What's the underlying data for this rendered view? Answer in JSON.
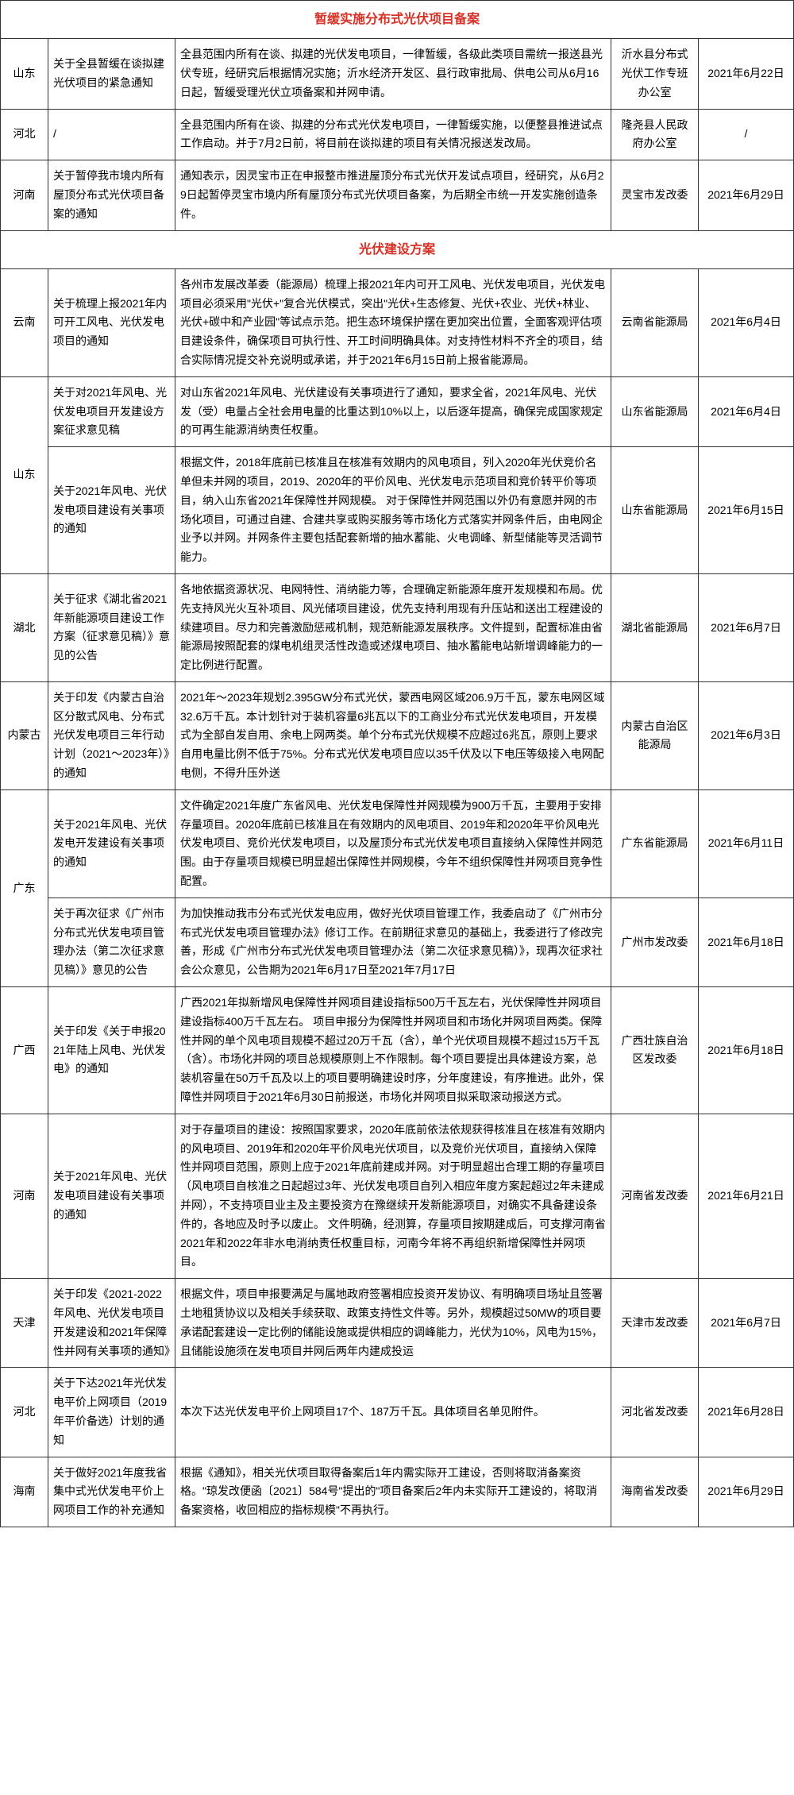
{
  "section1": {
    "header": "暂缓实施分布式光伏项目备案",
    "rows": [
      {
        "province": "山东",
        "title": "关于全县暂缓在谈拟建光伏项目的紧急通知",
        "content": "全县范围内所有在谈、拟建的光伏发电项目，一律暂缓，各级此类项目需统一报送县光伏专班，经研究后根据情况实施；沂水经济开发区、县行政审批局、供电公司从6月16日起，暂缓受理光伏立项备案和并网申请。",
        "dept": "沂水县分布式光伏工作专班办公室",
        "date": "2021年6月22日"
      },
      {
        "province": "河北",
        "title": "/",
        "content": "全县范围内所有在谈、拟建的分布式光伏发电项目，一律暂缓实施，以便整县推进试点工作启动。并于7月2日前，将目前在谈拟建的项目有关情况报送发改局。",
        "dept": "隆尧县人民政府办公室",
        "date": "/"
      },
      {
        "province": "河南",
        "title": "关于暂停我市境内所有屋顶分布式光伏项目备案的通知",
        "content": "通知表示，因灵宝市正在申报整市推进屋顶分布式光伏开发试点项目，经研究，从6月29日起暂停灵宝市境内所有屋顶分布式光伏项目备案，为后期全市统一开发实施创造条件。",
        "dept": "灵宝市发改委",
        "date": "2021年6月29日"
      }
    ]
  },
  "section2": {
    "header": "光伏建设方案",
    "rows": [
      {
        "province": "云南",
        "rowspan": 1,
        "title": "关于梳理上报2021年内可开工风电、光伏发电项目的通知",
        "content": "各州市发展改革委（能源局）梳理上报2021年内可开工风电、光伏发电项目，光伏发电项目必须采用\"光伏+\"复合光伏模式，突出\"光伏+生态修复、光伏+农业、光伏+林业、光伏+碳中和产业园\"等试点示范。把生态环境保护摆在更加突出位置，全面客观评估项目建设条件，确保项目可执行性、开工时间明确具体。对支持性材料不齐全的项目，结合实际情况提交补充说明或承诺，并于2021年6月15日前上报省能源局。",
        "dept": "云南省能源局",
        "date": "2021年6月4日"
      },
      {
        "province": "山东",
        "rowspan": 2,
        "title": "关于对2021年风电、光伏发电项目开发建设方案征求意见稿",
        "content": "对山东省2021年风电、光伏建设有关事项进行了通知，要求全省，2021年风电、光伏发（受）电量占全社会用电量的比重达到10%以上，以后逐年提高，确保完成国家规定的可再生能源消纳责任权重。",
        "dept": "山东省能源局",
        "date": "2021年6月4日"
      },
      {
        "title": "关于2021年风电、光伏发电项目建设有关事项的通知",
        "content": "根据文件，2018年底前已核准且在核准有效期内的风电项目，列入2020年光伏竞价名单但未并网的项目，2019、2020年的平价风电、光伏发电示范项目和竞价转平价等项目，纳入山东省2021年保障性并网规模。\n对于保障性并网范围以外仍有意愿并网的市场化项目，可通过自建、合建共享或购买服务等市场化方式落实并网条件后，由电网企业予以并网。并网条件主要包括配套新增的抽水蓄能、火电调峰、新型储能等灵活调节能力。",
        "dept": "山东省能源局",
        "date": "2021年6月15日"
      },
      {
        "province": "湖北",
        "rowspan": 1,
        "title": "关于征求《湖北省2021年新能源项目建设工作方案（征求意见稿）》意见的公告",
        "content": "各地依据资源状况、电网特性、消纳能力等，合理确定新能源年度开发规模和布局。优先支持风光火互补项目、风光储项目建设，优先支持利用现有升压站和送出工程建设的续建项目。尽力和完善激励惩戒机制，规范新能源发展秩序。文件提到，配置标准由省能源局按照配套的煤电机组灵活性改造或述煤电项目、抽水蓄能电站新增调峰能力的一定比例进行配置。",
        "dept": "湖北省能源局",
        "date": "2021年6月7日"
      },
      {
        "province": "内蒙古",
        "rowspan": 1,
        "title": "关于印发《内蒙古自治区分散式风电、分布式光伏发电项目三年行动计划（2021～2023年）》的通知",
        "content": "2021年～2023年规划2.395GW分布式光伏，蒙西电网区域206.9万千瓦，蒙东电网区域32.6万千瓦。本计划针对于装机容量6兆瓦以下的工商业分布式光伏发电项目，开发模式为全部自发自用、余电上网两类。单个分布式光伏规模不应超过6兆瓦，原则上要求自用电量比例不低于75%。分布式光伏发电项目应以35千伏及以下电压等级接入电网配电侧，不得升压外送",
        "dept": "内蒙古自治区能源局",
        "date": "2021年6月3日"
      },
      {
        "province": "广东",
        "rowspan": 2,
        "title": "关于2021年风电、光伏发电开发建设有关事项的通知",
        "content": "文件确定2021年度广东省风电、光伏发电保障性并网规模为900万千瓦，主要用于安排存量项目。2020年底前已核准且在有效期内的风电项目、2019年和2020年平价风电光伏发电项目、竞价光伏发电项目，以及屋顶分布式光伏发电项目直接纳入保障性并网范围。由于存量项目规模已明显超出保障性并网规模，今年不组织保障性并网项目竞争性配置。",
        "dept": "广东省能源局",
        "date": "2021年6月11日"
      },
      {
        "title": "关于再次征求《广州市分布式光伏发电项目管理办法（第二次征求意见稿）》意见的公告",
        "content": "为加快推动我市分布式光伏发电应用，做好光伏项目管理工作，我委启动了《广州市分布式光伏发电项目管理办法》修订工作。在前期征求意见的基础上，我委进行了修改完善，形成《广州市分布式光伏发电项目管理办法（第二次征求意见稿）》，现再次征求社会公众意见，公告期为2021年6月17日至2021年7月17日",
        "dept": "广州市发改委",
        "date": "2021年6月18日"
      },
      {
        "province": "广西",
        "rowspan": 1,
        "title": "关于印发《关于申报2021年陆上风电、光伏发电》的通知",
        "content": "广西2021年拟新增风电保障性并网项目建设指标500万千瓦左右，光伏保障性并网项目建设指标400万千瓦左右。\n项目申报分为保障性并网项目和市场化并网项目两类。保障性并网的单个风电项目规模不超过20万千瓦（含），单个光伏项目规模不超过15万千瓦（含）。市场化并网的项目总规模原则上不作限制。每个项目要提出具体建设方案，总装机容量在50万千瓦及以上的项目要明确建设时序，分年度建设，有序推进。此外，保障性并网项目于2021年6月30日前报送，市场化并网项目拟采取滚动报送方式。",
        "dept": "广西壮族自治区发改委",
        "date": "2021年6月18日"
      },
      {
        "province": "河南",
        "rowspan": 1,
        "title": "关于2021年风电、光伏发电项目建设有关事项的通知",
        "content": "对于存量项目的建设：按照国家要求，2020年底前依法依规获得核准且在核准有效期内的风电项目、2019年和2020年平价风电光伏项目，以及竞价光伏项目，直接纳入保障性并网项目范围，原则上应于2021年底前建成并网。对于明显超出合理工期的存量项目（风电项目自核准之日起超过3年、光伏发电项目自列入相应年度方案起超过2年未建成并网），不支持项目业主及主要投资方在豫继续开发新能源项目，对确实不具备建设条件的，各地应及时予以废止。\n文件明确，经测算，存量项目按期建成后，可支撑河南省2021年和2022年非水电消纳责任权重目标，河南今年将不再组织新增保障性并网项目。",
        "dept": "河南省发改委",
        "date": "2021年6月21日"
      },
      {
        "province": "天津",
        "rowspan": 1,
        "title": "关于印发《2021-2022年风电、光伏发电项目开发建设和2021年保障性并网有关事项的通知》",
        "content": "根据文件，项目申报要满足与属地政府签署相应投资开发协议、有明确项目场址且签署土地租赁协议以及相关手续获取、政策支持性文件等。另外，规模超过50MW的项目要承诺配套建设一定比例的储能设施或提供相应的调峰能力，光伏为10%，风电为15%，且储能设施须在发电项目并网后两年内建成投运",
        "dept": "天津市发改委",
        "date": "2021年6月7日"
      },
      {
        "province": "河北",
        "rowspan": 1,
        "title": "关于下达2021年光伏发电平价上网项目（2019年平价备选）计划的通知",
        "content": "本次下达光伏发电平价上网项目17个、187万千瓦。具体项目名单见附件。",
        "dept": "河北省发改委",
        "date": "2021年6月28日"
      },
      {
        "province": "海南",
        "rowspan": 1,
        "title": "关于做好2021年度我省集中式光伏发电平价上网项目工作的补充通知",
        "content": "根据《通知》，相关光伏项目取得备案后1年内需实际开工建设，否则将取消备案资格。\"琼发改便函〔2021〕584号\"提出的\"项目备案后2年内未实际开工建设的，将取消备案资格，收回相应的指标规模\"不再执行。",
        "dept": "海南省发改委",
        "date": "2021年6月29日"
      }
    ]
  },
  "styles": {
    "header_color": "#d93025",
    "border_color": "#333333",
    "font_size": 14,
    "line_height": 1.7
  }
}
